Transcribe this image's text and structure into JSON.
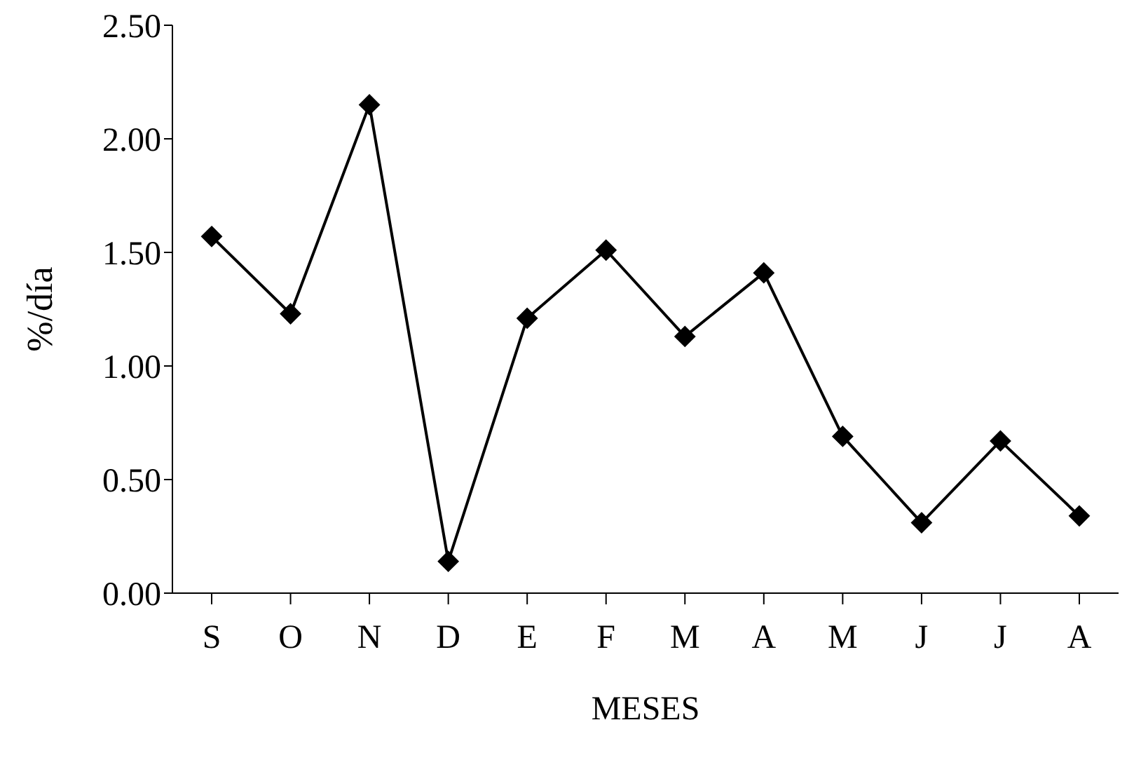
{
  "chart_data": {
    "type": "line",
    "xlabel": "MESES",
    "ylabel": "%/día",
    "categories": [
      "S",
      "O",
      "N",
      "D",
      "E",
      "F",
      "M",
      "A",
      "M",
      "J",
      "J",
      "A"
    ],
    "series": [
      {
        "color": "#000000",
        "values": [
          1.57,
          1.23,
          2.15,
          0.14,
          1.21,
          1.51,
          1.13,
          1.41,
          0.69,
          0.31,
          0.67,
          0.34
        ]
      }
    ],
    "ylim": [
      0,
      2.5
    ],
    "yticks": [
      {
        "value": 0,
        "label": "0.00"
      },
      {
        "value": 0.5,
        "label": "0.50"
      },
      {
        "value": 1,
        "label": "1.00"
      },
      {
        "value": 1.5,
        "label": "1.50"
      },
      {
        "value": 2,
        "label": "2.00"
      },
      {
        "value": 2.5,
        "label": "2.50"
      }
    ],
    "grid": false,
    "legend": false,
    "marker": "diamond",
    "line_style": "solid"
  }
}
